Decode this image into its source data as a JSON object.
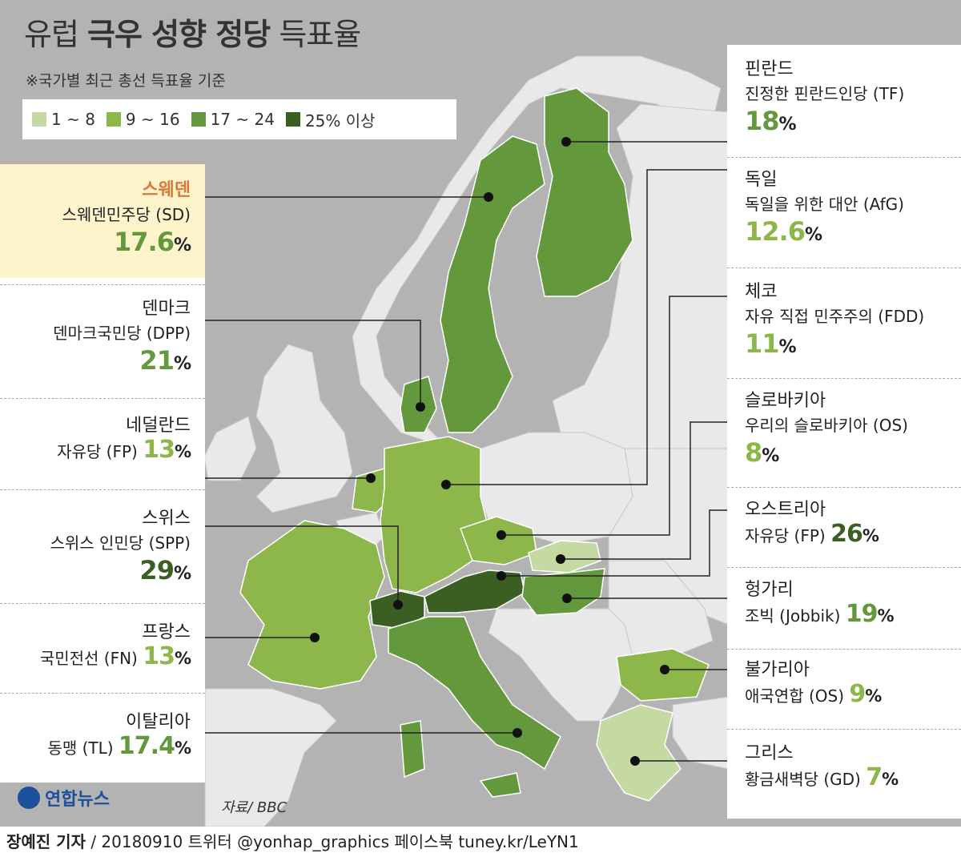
{
  "title": {
    "light1": "유럽 ",
    "bold": "극우 성향 정당",
    "light2": " 득표율"
  },
  "subtitle": "※국가별 최근 총선 득표율 기준",
  "legend": [
    {
      "label": "1 ~ 8",
      "color": "#c5d9a3"
    },
    {
      "label": "9 ~ 16",
      "color": "#8db64b"
    },
    {
      "label": "17 ~ 24",
      "color": "#64983d"
    },
    {
      "label": "25% 이상",
      "color": "#3b5e22"
    }
  ],
  "colors": {
    "light": "#c5d9a3",
    "mid": "#8db64b",
    "dark": "#64983d",
    "darkest": "#3b5e22",
    "highlight": "#fdf4cc",
    "accent": "#d8783a"
  },
  "countries": {
    "sweden": {
      "name": "스웨덴",
      "party": "스웨덴민주당 (SD)",
      "value": "17.6",
      "unit": "%"
    },
    "denmark": {
      "name": "덴마크",
      "party": "덴마크국민당 (DPP)",
      "value": "21",
      "unit": "%"
    },
    "netherlands": {
      "name": "네덜란드",
      "party": "자유당 (FP) ",
      "value": "13",
      "unit": "%"
    },
    "switzerland": {
      "name": "스위스",
      "party": "스위스 인민당 (SPP)",
      "value": "29",
      "unit": "%"
    },
    "france": {
      "name": "프랑스",
      "party": "국민전선 (FN) ",
      "value": "13",
      "unit": "%"
    },
    "italy": {
      "name": "이탈리아",
      "party": "동맹 (TL) ",
      "value": "17.4",
      "unit": "%"
    },
    "finland": {
      "name": "핀란드",
      "party": "진정한 핀란드인당 (TF)",
      "value": "18",
      "unit": "%"
    },
    "germany": {
      "name": "독일",
      "party": "독일을 위한 대안 (AfG)",
      "value": "12.6",
      "unit": "%"
    },
    "czech": {
      "name": "체코",
      "party": "자유 직접 민주주의 (FDD)",
      "value": "11",
      "unit": "%"
    },
    "slovakia": {
      "name": "슬로바키아",
      "party": "우리의 슬로바키아 (OS)",
      "value": "8",
      "unit": "%"
    },
    "austria": {
      "name": "오스트리아",
      "party": "자유당 (FP) ",
      "value": "26",
      "unit": "%"
    },
    "hungary": {
      "name": "헝가리",
      "party": "조빅 (Jobbik) ",
      "value": "19",
      "unit": "%"
    },
    "bulgaria": {
      "name": "불가리아",
      "party": "애국연합 (OS) ",
      "value": "9",
      "unit": "%"
    },
    "greece": {
      "name": "그리스",
      "party": "황금새벽당 (GD) ",
      "value": "7",
      "unit": "%"
    }
  },
  "logo": "연합뉴스",
  "source": "자료/ BBC",
  "footer": {
    "author": "장예진 기자",
    "rest": " / 20180910 트위터 @yonhap_graphics  페이스북 tuney.kr/LeYN1"
  }
}
